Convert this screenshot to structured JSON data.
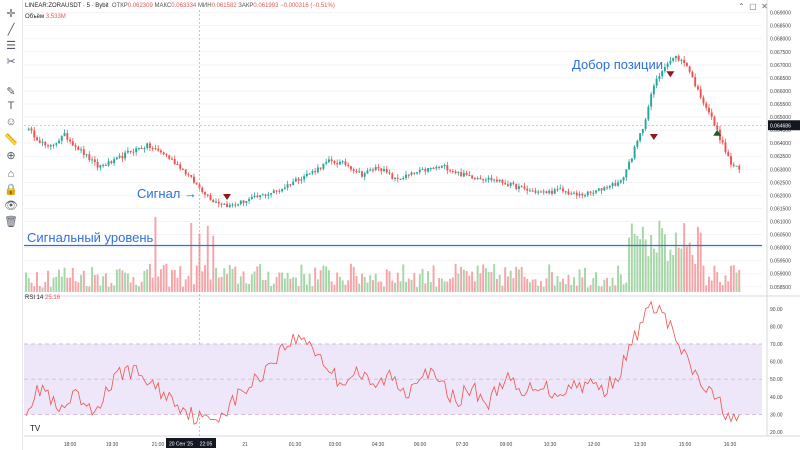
{
  "header": {
    "symbol": "LINEAR:ZORAUSDT · 5 · Bybit",
    "o_label": "ОТКР",
    "o_value": "0.062309",
    "h_label": "МАКС",
    "h_value": "0.063334",
    "l_label": "МИН",
    "l_value": "0.061582",
    "c_label": "ЗАКР",
    "c_value": "0.061993",
    "change": "−0.000316 (−0.51%)",
    "volume_label": "Объём",
    "volume_value": "3.533M",
    "rsi_label": "RSI 14",
    "rsi_value": "25.16"
  },
  "annotations": {
    "signal": "Сигнал",
    "signal_level": "Сигнальный уровень",
    "add_position": "Добор позиции"
  },
  "colors": {
    "up": "#26a69a",
    "down": "#ef5350",
    "level": "#2f6fdc",
    "rsi": "#ef5350",
    "rsi_band": "#ede7f9"
  },
  "tools": [
    "crosshair-icon",
    "trendline-icon",
    "fib-icon",
    "pattern-icon",
    "brush-icon",
    "text-icon",
    "emoji-icon",
    "ruler-icon",
    "zoom-icon",
    "magnet-icon",
    "lock-icon",
    "eye-icon",
    "trash-icon"
  ],
  "chart_data": [
    {
      "type": "candlestick",
      "title": "LINEAR:ZORAUSDT · 5 · Bybit",
      "price_axis": [
        "0.069000",
        "0.068500",
        "0.068000",
        "0.067500",
        "0.067000",
        "0.066500",
        "0.066000",
        "0.065500",
        "0.065000",
        "0.064500",
        "0.064000",
        "0.063500",
        "0.063000",
        "0.062500",
        "0.062000",
        "0.061500",
        "0.061000",
        "0.060500",
        "0.060000",
        "0.059500",
        "0.059000",
        "0.058500"
      ],
      "current_price": "0.064686",
      "ylim": [
        0.0583,
        0.0691
      ],
      "close_path": [
        [
          0,
          0.0646
        ],
        [
          8,
          0.0638
        ],
        [
          14,
          0.0643
        ],
        [
          20,
          0.0637
        ],
        [
          26,
          0.0631
        ],
        [
          32,
          0.0633
        ],
        [
          38,
          0.0637
        ],
        [
          44,
          0.0639
        ],
        [
          50,
          0.0636
        ],
        [
          56,
          0.0631
        ],
        [
          62,
          0.0624
        ],
        [
          68,
          0.0618
        ],
        [
          74,
          0.0616
        ],
        [
          80,
          0.0618
        ],
        [
          86,
          0.062
        ],
        [
          92,
          0.0622
        ],
        [
          98,
          0.0626
        ],
        [
          104,
          0.0629
        ],
        [
          110,
          0.0633
        ],
        [
          116,
          0.0632
        ],
        [
          122,
          0.0628
        ],
        [
          128,
          0.0631
        ],
        [
          134,
          0.0626
        ],
        [
          140,
          0.0628
        ],
        [
          146,
          0.063
        ],
        [
          152,
          0.0631
        ],
        [
          158,
          0.0628
        ],
        [
          164,
          0.0627
        ],
        [
          170,
          0.0626
        ],
        [
          176,
          0.0624
        ],
        [
          182,
          0.0622
        ],
        [
          188,
          0.0621
        ],
        [
          194,
          0.0622
        ],
        [
          200,
          0.062
        ],
        [
          206,
          0.0621
        ],
        [
          212,
          0.0624
        ],
        [
          216,
          0.0625
        ],
        [
          220,
          0.0635
        ],
        [
          224,
          0.0646
        ],
        [
          228,
          0.0662
        ],
        [
          232,
          0.067
        ],
        [
          236,
          0.0673
        ],
        [
          240,
          0.067
        ],
        [
          244,
          0.066
        ],
        [
          248,
          0.0652
        ],
        [
          252,
          0.0642
        ],
        [
          256,
          0.0632
        ],
        [
          260,
          0.0629
        ]
      ],
      "markers": [
        {
          "label": "Сигнал",
          "x": 73,
          "y": 0.0619,
          "direction": "down",
          "color": "#8b1a1a"
        },
        {
          "label": "",
          "x": 228,
          "y": 0.0642,
          "direction": "down",
          "color": "#8b1a1a"
        },
        {
          "label": "Добор позиции",
          "x": 234,
          "y": 0.0666,
          "direction": "down",
          "color": "#8b1a1a"
        },
        {
          "label": "",
          "x": 251,
          "y": 0.0644,
          "direction": "up",
          "color": "#1b5e20"
        }
      ],
      "volume": {
        "signal_level_fraction": 0.62,
        "spikes": [
          [
            47,
            1.0
          ],
          [
            60,
            0.92
          ],
          [
            63,
            0.78
          ],
          [
            66,
            0.88
          ],
          [
            68,
            0.75
          ],
          [
            230,
            0.95
          ],
          [
            231,
            0.85
          ]
        ]
      },
      "time_labels": [
        "18:00",
        "19:30",
        "21:00",
        "20 Сен '25",
        "22:05",
        "21",
        "01:30",
        "03:00",
        "04:30",
        "06:00",
        "07:30",
        "09:00",
        "10:30",
        "12:00",
        "13:30",
        "15:00",
        "16:30"
      ],
      "crosshair_time": "22:05"
    },
    {
      "type": "line",
      "title": "RSI 14",
      "ylim": [
        20,
        95
      ],
      "y_ticks": [
        "90.00",
        "80.00",
        "70.00",
        "60.00",
        "50.00",
        "40.00",
        "30.00",
        "20.00"
      ],
      "levels": [
        70,
        50,
        30
      ],
      "points": [
        [
          0,
          34
        ],
        [
          6,
          46
        ],
        [
          12,
          30
        ],
        [
          18,
          40
        ],
        [
          24,
          30
        ],
        [
          30,
          45
        ],
        [
          36,
          56
        ],
        [
          42,
          52
        ],
        [
          48,
          44
        ],
        [
          54,
          38
        ],
        [
          60,
          30
        ],
        [
          66,
          26
        ],
        [
          72,
          32
        ],
        [
          78,
          42
        ],
        [
          84,
          50
        ],
        [
          90,
          62
        ],
        [
          96,
          72
        ],
        [
          102,
          73
        ],
        [
          108,
          60
        ],
        [
          114,
          48
        ],
        [
          120,
          55
        ],
        [
          126,
          45
        ],
        [
          132,
          52
        ],
        [
          138,
          42
        ],
        [
          144,
          56
        ],
        [
          150,
          48
        ],
        [
          156,
          38
        ],
        [
          162,
          45
        ],
        [
          168,
          36
        ],
        [
          174,
          52
        ],
        [
          180,
          40
        ],
        [
          186,
          48
        ],
        [
          192,
          42
        ],
        [
          198,
          46
        ],
        [
          204,
          48
        ],
        [
          210,
          44
        ],
        [
          216,
          55
        ],
        [
          220,
          70
        ],
        [
          224,
          84
        ],
        [
          228,
          92
        ],
        [
          232,
          86
        ],
        [
          236,
          72
        ],
        [
          240,
          60
        ],
        [
          244,
          50
        ],
        [
          248,
          42
        ],
        [
          252,
          36
        ],
        [
          256,
          28
        ],
        [
          260,
          25
        ]
      ]
    }
  ]
}
